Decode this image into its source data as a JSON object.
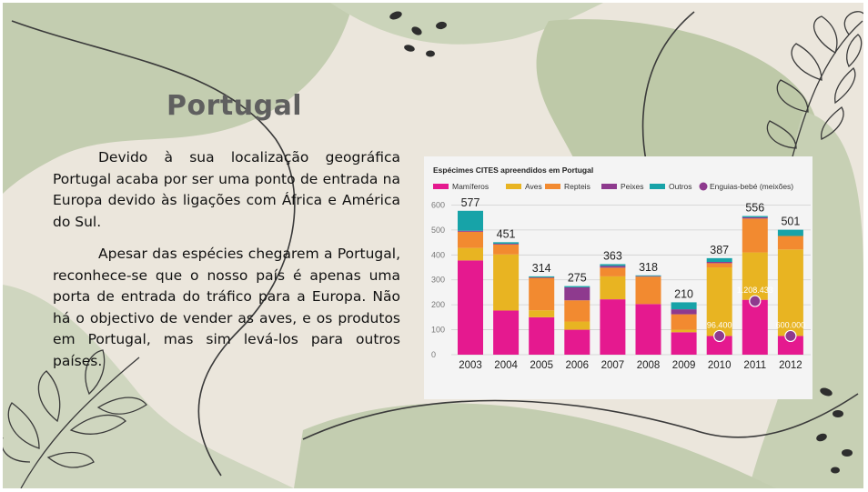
{
  "slide": {
    "title": "Portugal",
    "paragraphs": [
      "Devido à sua localização geográfica Portugal acaba por ser uma ponto de entrada na Europa devido às ligações com África e América do Sul.",
      "Apesar das espécies chegarem a Portugal, reconhece-se que o nosso país é apenas uma porta de entrada do tráfico para a Europa. Não há o objectivo de vender as aves, e os produtos em Portugal, mas sim levá-los para outros países."
    ],
    "colors": {
      "background": "#ebe6dc",
      "leaf": "#b9c6a5",
      "accent_dark": "#2f2f2f"
    }
  },
  "chart_data": {
    "type": "bar",
    "stacked": true,
    "title": "Espécimes CITES apreendidos em Portugal",
    "categories": [
      "2003",
      "2004",
      "2005",
      "2006",
      "2007",
      "2008",
      "2009",
      "2010",
      "2011",
      "2012"
    ],
    "series": [
      {
        "name": "Mamíferos",
        "color": "#e5198f",
        "values": [
          378,
          177,
          150,
          100,
          222,
          203,
          90,
          75,
          220,
          75
        ]
      },
      {
        "name": "Aves",
        "color": "#e8b422",
        "values": [
          50,
          225,
          28,
          33,
          92,
          0,
          10,
          275,
          190,
          347
        ]
      },
      {
        "name": "Repteis",
        "color": "#f28a30",
        "values": [
          65,
          40,
          130,
          85,
          35,
          110,
          62,
          17,
          136,
          54
        ]
      },
      {
        "name": "Peixes",
        "color": "#8e3a8e",
        "values": [
          4,
          3,
          2,
          52,
          7,
          2,
          20,
          5,
          5,
          0
        ]
      },
      {
        "name": "Outros",
        "color": "#17a3a8",
        "values": [
          80,
          6,
          4,
          5,
          7,
          3,
          28,
          15,
          5,
          25
        ]
      }
    ],
    "totals": [
      577,
      451,
      314,
      275,
      363,
      318,
      210,
      387,
      556,
      501
    ],
    "overlay": {
      "name": "Enguias-bebé (meixões)",
      "color": "#8e3a8e",
      "points": [
        {
          "category": "2010",
          "label": "96.400",
          "y": 75
        },
        {
          "category": "2011",
          "label": "1.208.433",
          "y": 215
        },
        {
          "category": "2012",
          "label": "600.000",
          "y": 75
        }
      ]
    },
    "yticks": [
      0,
      100,
      200,
      300,
      400,
      500,
      600
    ],
    "ylim": [
      0,
      620
    ],
    "grid": true,
    "legend_position": "top"
  }
}
